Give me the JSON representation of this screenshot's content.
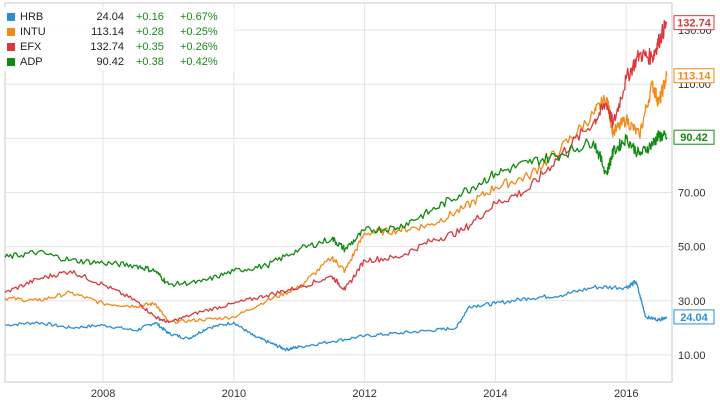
{
  "legend": [
    {
      "ticker": "HRB",
      "price": "24.04",
      "change": "+0.16",
      "pct": "+0.67%",
      "color": "#2b8fd6"
    },
    {
      "ticker": "INTU",
      "price": "113.14",
      "change": "+0.28",
      "pct": "+0.25%",
      "color": "#f28a1a"
    },
    {
      "ticker": "EFX",
      "price": "132.74",
      "change": "+0.35",
      "pct": "+0.26%",
      "color": "#d93a3f"
    },
    {
      "ticker": "ADP",
      "price": "90.42",
      "change": "+0.38",
      "pct": "+0.42%",
      "color": "#128a12"
    }
  ],
  "chart_data": {
    "type": "line",
    "xlabel": "",
    "ylabel": "",
    "xlim": [
      2006.5,
      2016.7
    ],
    "ylim": [
      0,
      140
    ],
    "x_ticks": [
      2008,
      2010,
      2012,
      2014,
      2016
    ],
    "y_ticks": [
      10,
      30,
      50,
      70,
      90,
      110,
      130
    ],
    "y_tick_labels": [
      "10.00",
      "30.00",
      "50.00",
      "70.00",
      "90.00",
      "110.00",
      "130.00"
    ],
    "grid": true,
    "legend_position": "top-left",
    "series": [
      {
        "name": "HRB",
        "color": "#2b8fd6",
        "end_label": "24.04",
        "points": [
          [
            2006.5,
            21
          ],
          [
            2007,
            22
          ],
          [
            2007.5,
            20
          ],
          [
            2008,
            21
          ],
          [
            2008.5,
            19
          ],
          [
            2008.8,
            22
          ],
          [
            2009,
            18
          ],
          [
            2009.3,
            16
          ],
          [
            2009.6,
            20
          ],
          [
            2010,
            22
          ],
          [
            2010.3,
            17
          ],
          [
            2010.6,
            14
          ],
          [
            2010.8,
            12
          ],
          [
            2011,
            13
          ],
          [
            2011.5,
            15
          ],
          [
            2012,
            17
          ],
          [
            2012.5,
            18
          ],
          [
            2013,
            19
          ],
          [
            2013.4,
            20
          ],
          [
            2013.6,
            28
          ],
          [
            2014,
            29
          ],
          [
            2014.5,
            31
          ],
          [
            2015,
            32
          ],
          [
            2015.5,
            35
          ],
          [
            2016,
            35
          ],
          [
            2016.15,
            37
          ],
          [
            2016.3,
            24
          ],
          [
            2016.5,
            23
          ],
          [
            2016.62,
            24.04
          ]
        ]
      },
      {
        "name": "INTU",
        "color": "#f28a1a",
        "end_label": "113.14",
        "points": [
          [
            2006.5,
            31
          ],
          [
            2007,
            30
          ],
          [
            2007.5,
            33
          ],
          [
            2008,
            29
          ],
          [
            2008.5,
            28
          ],
          [
            2008.8,
            29
          ],
          [
            2009,
            22
          ],
          [
            2009.5,
            23
          ],
          [
            2010,
            24
          ],
          [
            2010.5,
            30
          ],
          [
            2011,
            35
          ],
          [
            2011.5,
            46
          ],
          [
            2011.7,
            41
          ],
          [
            2012,
            55
          ],
          [
            2012.5,
            56
          ],
          [
            2013,
            58
          ],
          [
            2013.5,
            64
          ],
          [
            2014,
            72
          ],
          [
            2014.5,
            76
          ],
          [
            2015,
            86
          ],
          [
            2015.5,
            99
          ],
          [
            2015.7,
            105
          ],
          [
            2015.8,
            92
          ],
          [
            2016,
            97
          ],
          [
            2016.2,
            91
          ],
          [
            2016.4,
            110
          ],
          [
            2016.5,
            103
          ],
          [
            2016.62,
            113.14
          ]
        ]
      },
      {
        "name": "EFX",
        "color": "#d93a3f",
        "end_label": "132.74",
        "points": [
          [
            2006.5,
            33
          ],
          [
            2007,
            38
          ],
          [
            2007.5,
            41
          ],
          [
            2008,
            36
          ],
          [
            2008.5,
            30
          ],
          [
            2008.8,
            24
          ],
          [
            2009,
            22
          ],
          [
            2009.5,
            26
          ],
          [
            2010,
            29
          ],
          [
            2010.5,
            32
          ],
          [
            2011,
            35
          ],
          [
            2011.5,
            39
          ],
          [
            2011.7,
            34
          ],
          [
            2012,
            45
          ],
          [
            2012.5,
            46
          ],
          [
            2013,
            52
          ],
          [
            2013.5,
            56
          ],
          [
            2014,
            66
          ],
          [
            2014.5,
            71
          ],
          [
            2015,
            84
          ],
          [
            2015.5,
            96
          ],
          [
            2015.7,
            103
          ],
          [
            2015.8,
            95
          ],
          [
            2016,
            112
          ],
          [
            2016.2,
            121
          ],
          [
            2016.4,
            120
          ],
          [
            2016.5,
            126
          ],
          [
            2016.62,
            132.74
          ]
        ]
      },
      {
        "name": "ADP",
        "color": "#128a12",
        "end_label": "90.42",
        "points": [
          [
            2006.5,
            46
          ],
          [
            2007,
            48
          ],
          [
            2007.5,
            45
          ],
          [
            2008,
            44
          ],
          [
            2008.5,
            43
          ],
          [
            2008.8,
            41
          ],
          [
            2009,
            36
          ],
          [
            2009.5,
            37
          ],
          [
            2010,
            41
          ],
          [
            2010.5,
            43
          ],
          [
            2011,
            49
          ],
          [
            2011.5,
            53
          ],
          [
            2011.7,
            49
          ],
          [
            2012,
            56
          ],
          [
            2012.5,
            57
          ],
          [
            2013,
            63
          ],
          [
            2013.5,
            70
          ],
          [
            2014,
            77
          ],
          [
            2014.5,
            81
          ],
          [
            2015,
            84
          ],
          [
            2015.5,
            89
          ],
          [
            2015.7,
            77
          ],
          [
            2015.8,
            85
          ],
          [
            2016,
            90
          ],
          [
            2016.2,
            84
          ],
          [
            2016.4,
            88
          ],
          [
            2016.5,
            91
          ],
          [
            2016.62,
            90.42
          ]
        ]
      }
    ]
  }
}
